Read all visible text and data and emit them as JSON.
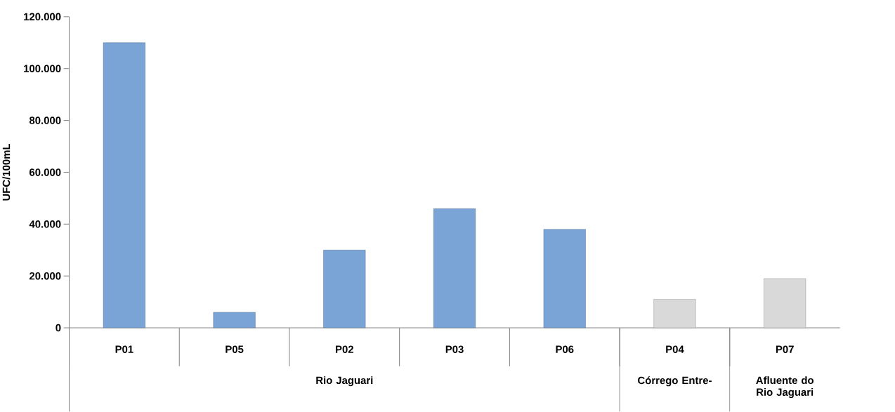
{
  "chart_data": {
    "type": "bar",
    "ylabel": "UFC/100mL",
    "categories": [
      "P01",
      "P05",
      "P02",
      "P03",
      "P06",
      "P04",
      "P07"
    ],
    "values": [
      110000,
      6000,
      30000,
      46000,
      38000,
      11000,
      19000
    ],
    "colors": [
      "#7aa3d6",
      "#7aa3d6",
      "#7aa3d6",
      "#7aa3d6",
      "#7aa3d6",
      "#d9d9d9",
      "#d9d9d9"
    ],
    "ylim": [
      0,
      120000
    ],
    "yticks": [
      0,
      {
        "value": 20000,
        "label": "20.000"
      },
      {
        "value": 40000,
        "label": "40.000"
      },
      {
        "value": 60000,
        "label": "60.000"
      },
      {
        "value": 80000,
        "label": "80.000"
      },
      {
        "value": 100000,
        "label": "100.000"
      },
      {
        "value": 120000,
        "label": "120.000"
      }
    ],
    "grid": false,
    "annotations": [
      "Rio Jaguari",
      "Córrego Entre-",
      "Afluente do Rio Jaguari"
    ]
  }
}
